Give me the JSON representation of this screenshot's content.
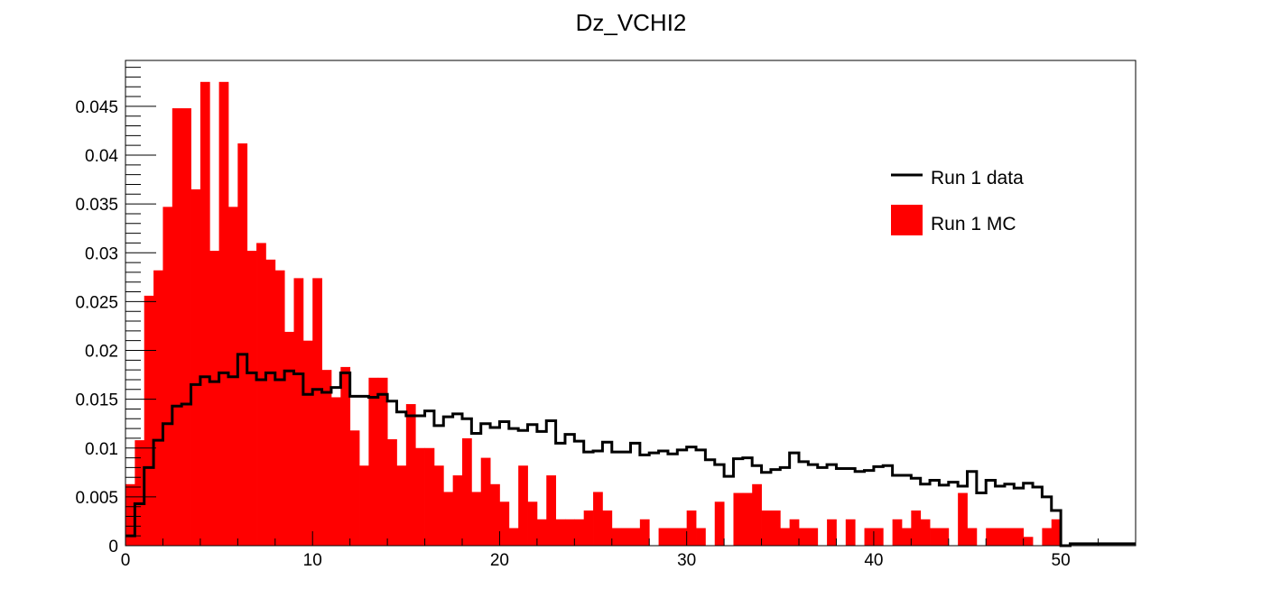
{
  "chart_data": {
    "type": "bar",
    "title": "Dz_VCHI2",
    "xlabel": "",
    "ylabel": "",
    "xlim": [
      0,
      54
    ],
    "ylim": [
      0,
      0.0497
    ],
    "bin_width": 0.5,
    "x_ticks": [
      0,
      10,
      20,
      30,
      40,
      50
    ],
    "x_tick_labels": [
      "0",
      "10",
      "20",
      "30",
      "40",
      "50"
    ],
    "y_ticks": [
      0,
      0.005,
      0.01,
      0.015,
      0.02,
      0.025,
      0.03,
      0.035,
      0.04,
      0.045
    ],
    "y_tick_labels": [
      "0",
      "0.005",
      "0.01",
      "0.015",
      "0.02",
      "0.025",
      "0.03",
      "0.035",
      "0.04",
      "0.045"
    ],
    "grid": false,
    "legend_position": "top-right",
    "series": [
      {
        "name": "Run 1 data",
        "style": "step",
        "color": "#000000",
        "values": [
          0.001,
          0.0043,
          0.008,
          0.0108,
          0.0125,
          0.0143,
          0.0145,
          0.0165,
          0.0173,
          0.0168,
          0.0177,
          0.0173,
          0.0196,
          0.0177,
          0.017,
          0.0177,
          0.017,
          0.0179,
          0.0176,
          0.0155,
          0.016,
          0.0157,
          0.0162,
          0.0177,
          0.0153,
          0.0153,
          0.0152,
          0.0155,
          0.0148,
          0.0137,
          0.0133,
          0.0133,
          0.0138,
          0.0123,
          0.0132,
          0.0135,
          0.013,
          0.0115,
          0.0125,
          0.0121,
          0.0127,
          0.012,
          0.0118,
          0.0124,
          0.0117,
          0.0128,
          0.0105,
          0.0114,
          0.0107,
          0.0096,
          0.0097,
          0.0106,
          0.0096,
          0.0096,
          0.0105,
          0.0093,
          0.0095,
          0.0097,
          0.0094,
          0.0098,
          0.0101,
          0.0098,
          0.0088,
          0.0083,
          0.0071,
          0.0089,
          0.009,
          0.0082,
          0.0075,
          0.0078,
          0.008,
          0.0095,
          0.0086,
          0.0083,
          0.008,
          0.0083,
          0.0079,
          0.0079,
          0.0076,
          0.0077,
          0.0081,
          0.0082,
          0.0072,
          0.0072,
          0.0069,
          0.0063,
          0.0067,
          0.0062,
          0.0065,
          0.0061,
          0.0076,
          0.0054,
          0.0067,
          0.0061,
          0.0063,
          0.0059,
          0.0064,
          0.006,
          0.005,
          0.0036,
          0.0,
          0.0002,
          0.0002,
          0.0002,
          0.0002,
          0.0002,
          0.0002,
          0.0002
        ]
      },
      {
        "name": "Run 1 MC",
        "style": "filled-bar",
        "color": "#ff0000",
        "values": [
          0.0063,
          0.0108,
          0.0256,
          0.0282,
          0.0347,
          0.0448,
          0.0448,
          0.0365,
          0.0475,
          0.0302,
          0.0475,
          0.0347,
          0.0412,
          0.0302,
          0.031,
          0.0293,
          0.0282,
          0.0219,
          0.0274,
          0.021,
          0.0274,
          0.018,
          0.0152,
          0.0183,
          0.0118,
          0.0082,
          0.0172,
          0.0172,
          0.0109,
          0.0082,
          0.0145,
          0.01,
          0.01,
          0.0082,
          0.0055,
          0.0072,
          0.011,
          0.0055,
          0.009,
          0.0063,
          0.0045,
          0.0018,
          0.0082,
          0.0045,
          0.0027,
          0.0072,
          0.0027,
          0.0027,
          0.0027,
          0.0036,
          0.0055,
          0.0036,
          0.0018,
          0.0018,
          0.0018,
          0.0027,
          0.0,
          0.0018,
          0.0018,
          0.0018,
          0.0036,
          0.0018,
          0.0,
          0.0045,
          0.0,
          0.0054,
          0.0054,
          0.0063,
          0.0036,
          0.0036,
          0.0018,
          0.0027,
          0.0018,
          0.0018,
          0.0,
          0.0027,
          0.0,
          0.0027,
          0.0,
          0.0018,
          0.0018,
          0.0,
          0.0027,
          0.0018,
          0.0036,
          0.0027,
          0.0018,
          0.0018,
          0.0,
          0.0054,
          0.0018,
          0.0,
          0.0018,
          0.0018,
          0.0018,
          0.0018,
          0.0009,
          0.0,
          0.0018,
          0.0027,
          0.0,
          0.0,
          0.0,
          0.0,
          0.0,
          0.0,
          0.0,
          0.0
        ]
      }
    ]
  }
}
